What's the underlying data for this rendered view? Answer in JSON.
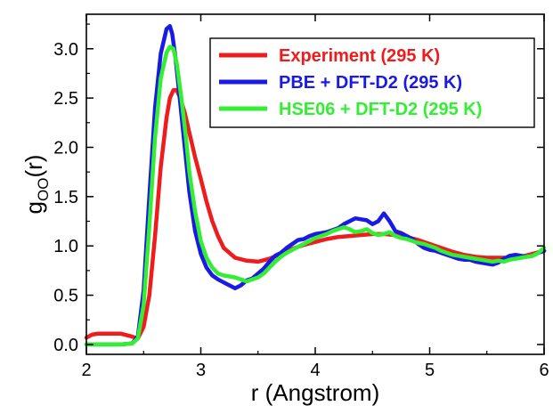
{
  "chart_data": {
    "type": "line",
    "xlabel": "r (Angstrom)",
    "ylabel": "g",
    "ylabel_subscript": "OO",
    "ylabel_suffix": "(r)",
    "xlim": [
      2,
      6
    ],
    "ylim": [
      -0.1,
      3.35
    ],
    "xticks": [
      2,
      3,
      4,
      5,
      6
    ],
    "yticks": [
      0.0,
      0.5,
      1.0,
      1.5,
      2.0,
      2.5,
      3.0
    ],
    "ytick_labels": [
      "0.0",
      "0.5",
      "1.0",
      "1.5",
      "2.0",
      "2.5",
      "3.0"
    ],
    "grid": false,
    "legend_position": "top-right",
    "series": [
      {
        "name": "Experiment (295 K)",
        "color": "#ee1c1c",
        "x": [
          2.0,
          2.05,
          2.1,
          2.2,
          2.3,
          2.4,
          2.45,
          2.5,
          2.55,
          2.6,
          2.65,
          2.7,
          2.73,
          2.76,
          2.79,
          2.82,
          2.86,
          2.9,
          2.95,
          3.0,
          3.05,
          3.1,
          3.15,
          3.2,
          3.3,
          3.4,
          3.5,
          3.6,
          3.7,
          3.8,
          3.9,
          4.0,
          4.1,
          4.2,
          4.3,
          4.4,
          4.5,
          4.6,
          4.7,
          4.8,
          4.9,
          5.0,
          5.1,
          5.2,
          5.3,
          5.4,
          5.5,
          5.6,
          5.7,
          5.8,
          5.9,
          6.0
        ],
        "y": [
          0.07,
          0.1,
          0.11,
          0.11,
          0.11,
          0.08,
          0.06,
          0.18,
          0.5,
          1.1,
          1.8,
          2.3,
          2.5,
          2.58,
          2.58,
          2.5,
          2.35,
          2.15,
          1.9,
          1.68,
          1.45,
          1.25,
          1.1,
          0.98,
          0.88,
          0.85,
          0.84,
          0.87,
          0.92,
          0.97,
          1.01,
          1.04,
          1.07,
          1.09,
          1.1,
          1.11,
          1.12,
          1.12,
          1.11,
          1.09,
          1.06,
          1.02,
          0.98,
          0.94,
          0.91,
          0.89,
          0.88,
          0.88,
          0.88,
          0.89,
          0.92,
          0.95
        ]
      },
      {
        "name": "PBE + DFT-D2 (295 K)",
        "color": "#1a1ae6",
        "x": [
          2.0,
          2.1,
          2.2,
          2.3,
          2.4,
          2.45,
          2.5,
          2.55,
          2.6,
          2.65,
          2.7,
          2.73,
          2.75,
          2.78,
          2.82,
          2.86,
          2.9,
          2.95,
          3.0,
          3.05,
          3.1,
          3.15,
          3.2,
          3.25,
          3.3,
          3.35,
          3.4,
          3.45,
          3.5,
          3.55,
          3.6,
          3.65,
          3.7,
          3.75,
          3.8,
          3.85,
          3.9,
          3.95,
          4.0,
          4.05,
          4.1,
          4.15,
          4.2,
          4.25,
          4.3,
          4.35,
          4.4,
          4.45,
          4.5,
          4.55,
          4.6,
          4.65,
          4.7,
          4.75,
          4.8,
          4.85,
          4.9,
          4.95,
          5.0,
          5.05,
          5.1,
          5.15,
          5.2,
          5.25,
          5.3,
          5.35,
          5.4,
          5.45,
          5.5,
          5.55,
          5.6,
          5.65,
          5.7,
          5.75,
          5.8,
          5.85,
          5.9,
          5.95,
          6.0
        ],
        "y": [
          0.0,
          0.0,
          0.0,
          0.0,
          0.01,
          0.08,
          0.55,
          1.5,
          2.4,
          2.95,
          3.2,
          3.23,
          3.15,
          2.9,
          2.45,
          2.0,
          1.55,
          1.15,
          0.92,
          0.78,
          0.7,
          0.66,
          0.63,
          0.6,
          0.57,
          0.6,
          0.65,
          0.67,
          0.72,
          0.77,
          0.84,
          0.9,
          0.93,
          0.98,
          1.02,
          1.06,
          1.07,
          1.1,
          1.12,
          1.13,
          1.14,
          1.16,
          1.18,
          1.22,
          1.25,
          1.28,
          1.27,
          1.26,
          1.22,
          1.25,
          1.33,
          1.25,
          1.15,
          1.13,
          1.1,
          1.07,
          1.02,
          0.98,
          0.96,
          0.95,
          0.93,
          0.91,
          0.89,
          0.87,
          0.86,
          0.86,
          0.84,
          0.83,
          0.82,
          0.81,
          0.83,
          0.87,
          0.9,
          0.91,
          0.9,
          0.89,
          0.9,
          0.93,
          0.95
        ]
      },
      {
        "name": "HSE06 + DFT-D2 (295 K)",
        "color": "#33ee33",
        "x": [
          2.0,
          2.1,
          2.2,
          2.3,
          2.4,
          2.45,
          2.5,
          2.55,
          2.6,
          2.65,
          2.7,
          2.73,
          2.76,
          2.79,
          2.83,
          2.87,
          2.9,
          2.95,
          3.0,
          3.05,
          3.1,
          3.15,
          3.2,
          3.25,
          3.3,
          3.35,
          3.4,
          3.45,
          3.5,
          3.55,
          3.6,
          3.65,
          3.7,
          3.75,
          3.8,
          3.85,
          3.9,
          3.95,
          4.0,
          4.05,
          4.1,
          4.15,
          4.2,
          4.25,
          4.3,
          4.35,
          4.4,
          4.45,
          4.5,
          4.55,
          4.6,
          4.65,
          4.7,
          4.75,
          4.8,
          4.85,
          4.9,
          4.95,
          5.0,
          5.05,
          5.1,
          5.15,
          5.2,
          5.25,
          5.3,
          5.35,
          5.4,
          5.45,
          5.5,
          5.55,
          5.6,
          5.65,
          5.7,
          5.75,
          5.8,
          5.85,
          5.9,
          5.95,
          6.0
        ],
        "y": [
          0.0,
          0.0,
          0.0,
          0.0,
          0.01,
          0.06,
          0.4,
          1.2,
          2.1,
          2.7,
          2.96,
          3.02,
          3.0,
          2.85,
          2.5,
          2.1,
          1.75,
          1.35,
          1.05,
          0.88,
          0.78,
          0.72,
          0.7,
          0.69,
          0.68,
          0.66,
          0.64,
          0.66,
          0.68,
          0.72,
          0.78,
          0.84,
          0.89,
          0.93,
          0.96,
          0.99,
          1.02,
          1.05,
          1.08,
          1.1,
          1.12,
          1.15,
          1.17,
          1.19,
          1.17,
          1.14,
          1.15,
          1.17,
          1.13,
          1.11,
          1.12,
          1.14,
          1.1,
          1.08,
          1.07,
          1.05,
          1.03,
          1.02,
          1.0,
          0.98,
          0.95,
          0.93,
          0.91,
          0.9,
          0.89,
          0.88,
          0.87,
          0.86,
          0.85,
          0.84,
          0.85,
          0.84,
          0.86,
          0.87,
          0.88,
          0.89,
          0.9,
          0.93,
          0.98
        ]
      }
    ]
  }
}
